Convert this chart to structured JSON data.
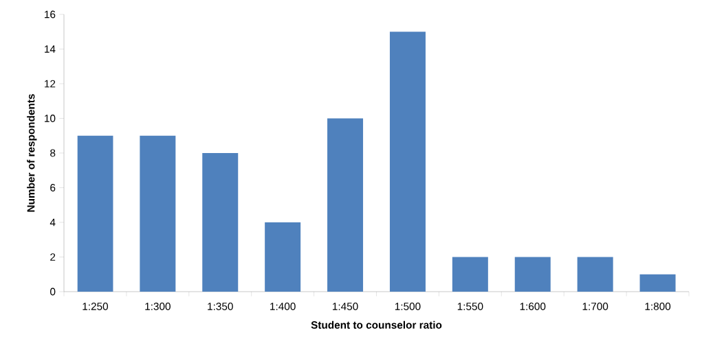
{
  "chart_data": {
    "type": "bar",
    "xlabel": "Student to counselor ratio",
    "ylabel": "Number of respondents",
    "categories": [
      "1:250",
      "1:300",
      "1:350",
      "1:400",
      "1:450",
      "1:500",
      "1:550",
      "1:600",
      "1:700",
      "1:800"
    ],
    "values": [
      9,
      9,
      8,
      4,
      10,
      15,
      2,
      2,
      2,
      1
    ],
    "color": "#4f81bd",
    "ylim": [
      0,
      16
    ],
    "yticks": [
      0,
      2,
      4,
      6,
      8,
      10,
      12,
      14,
      16
    ]
  }
}
